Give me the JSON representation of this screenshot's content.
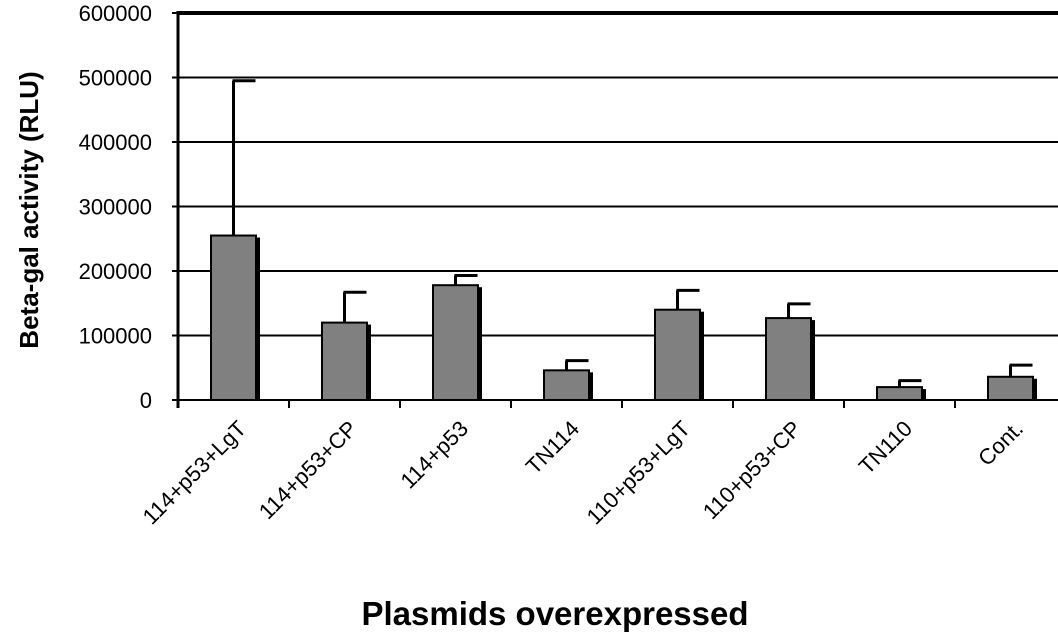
{
  "chart_data": {
    "type": "bar",
    "title": "",
    "xlabel": "Plasmids overexpressed",
    "ylabel": "Beta-gal activity (RLU)",
    "categories": [
      "114+p53+LgT",
      "114+p53+CP",
      "114+p53",
      "TN114",
      "110+p53+LgT",
      "110+p53+CP",
      "TN110",
      "Cont."
    ],
    "values": [
      255000,
      120000,
      178000,
      46000,
      140000,
      127000,
      20000,
      36000
    ],
    "error_plus": [
      240000,
      47000,
      15000,
      15000,
      30000,
      22000,
      10000,
      18000
    ],
    "ylim": [
      0,
      600000
    ],
    "yticks": [
      0,
      100000,
      200000,
      300000,
      400000,
      500000,
      600000
    ],
    "ytick_labels": [
      "0",
      "100000",
      "200000",
      "300000",
      "400000",
      "500000",
      "600000"
    ],
    "grid": true,
    "bar_color": "#808080"
  }
}
